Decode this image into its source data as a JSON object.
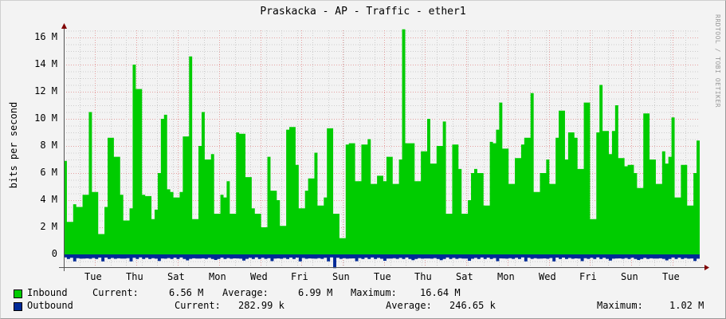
{
  "title": "Praskacka - AP - Traffic - ether1",
  "watermark": "RRDTOOL / TOBI OETIKER",
  "colors": {
    "inbound": "#00cc00",
    "outbound": "#002a97",
    "grid_major": "#e5a0a0",
    "grid_minor": "#cccccc",
    "axis": "#800000"
  },
  "legend": {
    "inbound": {
      "label": "Inbound",
      "current_label": "Current:",
      "current": "6.56 M",
      "average_label": "Average:",
      "average": "6.99 M",
      "maximum_label": "Maximum:",
      "maximum": "16.64 M"
    },
    "outbound": {
      "label": "Outbound",
      "current_label": "Current:",
      "current": "282.99 k",
      "average_label": "Average:",
      "average": "246.65 k",
      "maximum_label": "Maximum:",
      "maximum": "1.02 M"
    }
  },
  "chart_data": {
    "type": "area",
    "title": "Praskacka - AP - Traffic - ether1",
    "xlabel": "",
    "ylabel": "bits per second",
    "ylim": [
      -0.5,
      17
    ],
    "yticks": [
      "0",
      "2 M",
      "4 M",
      "6 M",
      "8 M",
      "10 M",
      "12 M",
      "14 M",
      "16 M"
    ],
    "xticks": [
      "Tue",
      "Thu",
      "Sat",
      "Mon",
      "Wed",
      "Fri",
      "Sun",
      "Tue",
      "Thu",
      "Sat",
      "Mon",
      "Wed",
      "Fri",
      "Sun",
      "Tue"
    ],
    "grid": true,
    "legend_position": "bottom",
    "series": [
      {
        "name": "Inbound",
        "unit": "Mbps",
        "values": [
          6.9,
          2.4,
          2.4,
          3.7,
          3.5,
          3.5,
          4.4,
          4.4,
          10.5,
          4.6,
          4.6,
          1.5,
          1.5,
          3.5,
          8.6,
          8.6,
          7.2,
          7.2,
          4.4,
          2.5,
          2.5,
          3.4,
          14.0,
          12.2,
          12.2,
          4.4,
          4.3,
          4.3,
          2.6,
          3.3,
          6.0,
          10.0,
          10.3,
          4.8,
          4.6,
          4.2,
          4.2,
          4.6,
          8.7,
          8.7,
          14.6,
          2.6,
          2.6,
          8.0,
          10.5,
          7.0,
          7.0,
          7.4,
          3.0,
          3.0,
          4.4,
          4.2,
          5.4,
          3.0,
          3.0,
          9.0,
          8.9,
          8.9,
          5.7,
          5.7,
          3.4,
          3.0,
          3.0,
          2.0,
          2.0,
          7.2,
          4.7,
          4.7,
          4.0,
          2.1,
          2.1,
          9.2,
          9.4,
          9.4,
          6.6,
          3.4,
          3.4,
          4.7,
          5.6,
          5.6,
          7.5,
          3.6,
          3.6,
          4.2,
          9.3,
          9.3,
          3.0,
          3.0,
          1.2,
          1.2,
          8.1,
          8.2,
          8.2,
          5.4,
          5.4,
          8.1,
          8.1,
          8.5,
          5.2,
          5.2,
          5.8,
          5.8,
          5.4,
          7.2,
          7.2,
          5.2,
          5.2,
          7.0,
          16.6,
          8.2,
          8.2,
          8.2,
          5.4,
          5.4,
          7.6,
          7.6,
          10.0,
          6.7,
          6.7,
          8.0,
          8.0,
          9.8,
          3.0,
          3.0,
          8.1,
          8.1,
          6.3,
          3.0,
          3.0,
          4.0,
          6.0,
          6.3,
          6.0,
          6.0,
          3.6,
          3.6,
          8.3,
          8.2,
          9.2,
          11.2,
          7.8,
          7.8,
          5.2,
          5.2,
          7.1,
          7.1,
          8.1,
          8.6,
          8.6,
          11.9,
          4.6,
          4.6,
          6.0,
          6.0,
          7.0,
          5.2,
          5.2,
          8.6,
          10.6,
          10.6,
          7.0,
          9.0,
          9.0,
          8.6,
          6.3,
          6.3,
          11.2,
          11.2,
          2.6,
          2.6,
          9.0,
          12.5,
          9.1,
          9.1,
          7.4,
          9.1,
          11.0,
          7.1,
          7.1,
          6.5,
          6.6,
          6.6,
          6.0,
          4.9,
          4.9,
          10.4,
          10.4,
          7.0,
          7.0,
          5.2,
          5.2,
          7.6,
          6.7,
          7.2,
          10.1,
          4.2,
          4.2,
          6.6,
          6.6,
          3.6,
          3.6,
          6.0,
          8.4
        ],
        "note": "values estimated from pixel heights; approximately 200 samples across the visible time span"
      },
      {
        "name": "Outbound",
        "unit": "Mbps",
        "note": "plotted below zero axis; mostly 0.2–0.4 M with peaks near 1.02 M",
        "values_approx_range": [
          0.15,
          1.02
        ]
      }
    ]
  }
}
